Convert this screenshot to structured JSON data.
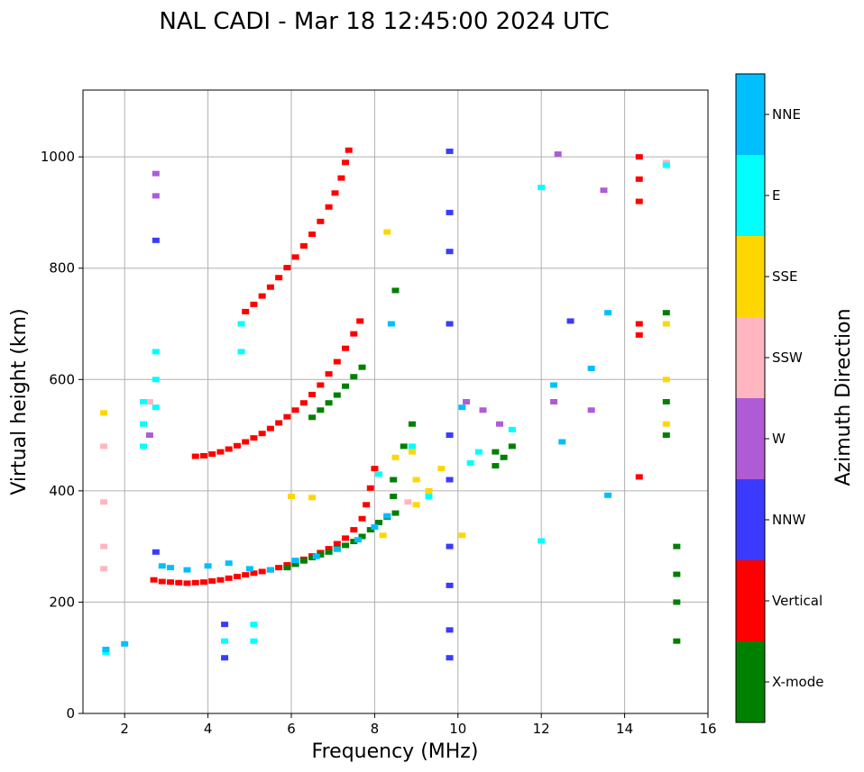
{
  "chart_data": {
    "type": "scatter",
    "title": "NAL CADI - Mar 18 12:45:00 2024 UTC",
    "xlabel": "Frequency (MHz)",
    "ylabel": "Virtual height (km)",
    "xlim": [
      1,
      16
    ],
    "ylim": [
      0,
      1120
    ],
    "xticks": [
      2,
      4,
      6,
      8,
      10,
      12,
      14,
      16
    ],
    "yticks": [
      0,
      200,
      400,
      600,
      800,
      1000
    ],
    "grid": true,
    "colorbar": {
      "title": "Azimuth Direction",
      "categories": [
        {
          "label": "X-mode",
          "color": "#008000"
        },
        {
          "label": "Vertical",
          "color": "#ff0000"
        },
        {
          "label": "NNW",
          "color": "#3b3bff"
        },
        {
          "label": "W",
          "color": "#b05bd6"
        },
        {
          "label": "SSW",
          "color": "#ffb6c1"
        },
        {
          "label": "SSE",
          "color": "#ffd700"
        },
        {
          "label": "E",
          "color": "#00ffff"
        },
        {
          "label": "NNE",
          "color": "#00bfff"
        }
      ]
    },
    "series": [
      {
        "name": "Vertical",
        "points": [
          [
            2.7,
            240
          ],
          [
            2.9,
            237
          ],
          [
            3.1,
            236
          ],
          [
            3.3,
            235
          ],
          [
            3.5,
            234
          ],
          [
            3.7,
            235
          ],
          [
            3.9,
            236
          ],
          [
            4.1,
            238
          ],
          [
            4.3,
            240
          ],
          [
            4.5,
            243
          ],
          [
            4.7,
            246
          ],
          [
            4.9,
            249
          ],
          [
            5.1,
            252
          ],
          [
            5.3,
            255
          ],
          [
            5.5,
            258
          ],
          [
            5.7,
            262
          ],
          [
            5.9,
            267
          ],
          [
            6.1,
            272
          ],
          [
            6.3,
            277
          ],
          [
            6.5,
            283
          ],
          [
            6.7,
            289
          ],
          [
            6.9,
            296
          ],
          [
            7.1,
            305
          ],
          [
            7.3,
            315
          ],
          [
            7.5,
            330
          ],
          [
            7.7,
            350
          ],
          [
            7.8,
            375
          ],
          [
            7.9,
            405
          ],
          [
            8.0,
            440
          ],
          [
            3.7,
            462
          ],
          [
            3.9,
            463
          ],
          [
            4.1,
            466
          ],
          [
            4.3,
            470
          ],
          [
            4.5,
            475
          ],
          [
            4.7,
            481
          ],
          [
            4.9,
            488
          ],
          [
            5.1,
            495
          ],
          [
            5.3,
            503
          ],
          [
            5.5,
            512
          ],
          [
            5.7,
            522
          ],
          [
            5.9,
            533
          ],
          [
            6.1,
            545
          ],
          [
            6.3,
            558
          ],
          [
            6.5,
            573
          ],
          [
            6.7,
            590
          ],
          [
            6.9,
            610
          ],
          [
            7.1,
            632
          ],
          [
            7.3,
            656
          ],
          [
            7.5,
            682
          ],
          [
            7.65,
            705
          ],
          [
            4.9,
            722
          ],
          [
            5.1,
            735
          ],
          [
            5.3,
            750
          ],
          [
            5.5,
            766
          ],
          [
            5.7,
            783
          ],
          [
            5.9,
            801
          ],
          [
            6.1,
            820
          ],
          [
            6.3,
            840
          ],
          [
            6.5,
            861
          ],
          [
            6.7,
            884
          ],
          [
            6.9,
            910
          ],
          [
            7.05,
            935
          ],
          [
            7.2,
            962
          ],
          [
            7.3,
            990
          ],
          [
            7.38,
            1012
          ],
          [
            14.35,
            1000
          ],
          [
            14.35,
            960
          ],
          [
            14.35,
            920
          ],
          [
            14.35,
            700
          ],
          [
            14.35,
            680
          ],
          [
            14.35,
            425
          ]
        ]
      },
      {
        "name": "X-mode",
        "points": [
          [
            5.9,
            262
          ],
          [
            6.1,
            268
          ],
          [
            6.3,
            274
          ],
          [
            6.5,
            280
          ],
          [
            6.7,
            285
          ],
          [
            6.9,
            290
          ],
          [
            7.1,
            296
          ],
          [
            7.3,
            302
          ],
          [
            7.5,
            309
          ],
          [
            7.7,
            318
          ],
          [
            7.9,
            330
          ],
          [
            8.1,
            343
          ],
          [
            8.3,
            353
          ],
          [
            8.5,
            360
          ],
          [
            6.5,
            532
          ],
          [
            6.7,
            545
          ],
          [
            6.9,
            558
          ],
          [
            7.1,
            572
          ],
          [
            7.3,
            588
          ],
          [
            7.5,
            605
          ],
          [
            7.7,
            622
          ],
          [
            8.5,
            760
          ],
          [
            8.45,
            420
          ],
          [
            8.45,
            390
          ],
          [
            8.7,
            480
          ],
          [
            8.9,
            520
          ],
          [
            10.9,
            470
          ],
          [
            10.9,
            445
          ],
          [
            11.1,
            460
          ],
          [
            11.3,
            480
          ],
          [
            15.25,
            300
          ],
          [
            15.25,
            250
          ],
          [
            15.25,
            200
          ],
          [
            15.25,
            130
          ],
          [
            15.0,
            720
          ],
          [
            15.0,
            560
          ],
          [
            15.0,
            500
          ]
        ]
      },
      {
        "name": "NNW",
        "points": [
          [
            9.8,
            1010
          ],
          [
            9.8,
            900
          ],
          [
            9.8,
            830
          ],
          [
            9.8,
            700
          ],
          [
            9.8,
            500
          ],
          [
            9.8,
            420
          ],
          [
            9.8,
            300
          ],
          [
            9.8,
            230
          ],
          [
            9.8,
            150
          ],
          [
            9.8,
            100
          ],
          [
            2.75,
            290
          ],
          [
            2.75,
            850
          ],
          [
            4.4,
            160
          ],
          [
            4.4,
            100
          ],
          [
            12.7,
            705
          ]
        ]
      },
      {
        "name": "W",
        "points": [
          [
            2.75,
            970
          ],
          [
            2.75,
            930
          ],
          [
            2.6,
            500
          ],
          [
            10.2,
            560
          ],
          [
            10.6,
            545
          ],
          [
            11.0,
            520
          ],
          [
            12.3,
            560
          ],
          [
            12.4,
            1005
          ],
          [
            13.5,
            940
          ],
          [
            13.2,
            545
          ]
        ]
      },
      {
        "name": "SSW",
        "points": [
          [
            1.5,
            380
          ],
          [
            1.5,
            300
          ],
          [
            1.5,
            260
          ],
          [
            1.5,
            480
          ],
          [
            2.6,
            560
          ],
          [
            8.8,
            380
          ],
          [
            15.0,
            990
          ]
        ]
      },
      {
        "name": "SSE",
        "points": [
          [
            1.5,
            540
          ],
          [
            6.0,
            390
          ],
          [
            6.5,
            388
          ],
          [
            8.5,
            460
          ],
          [
            8.9,
            470
          ],
          [
            9.0,
            420
          ],
          [
            9.0,
            375
          ],
          [
            9.3,
            400
          ],
          [
            9.6,
            440
          ],
          [
            15.0,
            700
          ],
          [
            15.0,
            600
          ],
          [
            15.0,
            520
          ],
          [
            8.3,
            865
          ],
          [
            8.2,
            320
          ],
          [
            10.1,
            320
          ]
        ]
      },
      {
        "name": "E",
        "points": [
          [
            2.45,
            560
          ],
          [
            2.45,
            520
          ],
          [
            2.45,
            480
          ],
          [
            2.75,
            650
          ],
          [
            2.75,
            600
          ],
          [
            2.75,
            550
          ],
          [
            4.8,
            700
          ],
          [
            4.8,
            650
          ],
          [
            5.1,
            160
          ],
          [
            5.1,
            130
          ],
          [
            4.4,
            130
          ],
          [
            8.1,
            430
          ],
          [
            8.9,
            480
          ],
          [
            9.3,
            390
          ],
          [
            10.3,
            450
          ],
          [
            10.5,
            470
          ],
          [
            11.3,
            510
          ],
          [
            12.0,
            945
          ],
          [
            12.0,
            310
          ],
          [
            15.0,
            985
          ],
          [
            1.55,
            110
          ]
        ]
      },
      {
        "name": "NNE",
        "points": [
          [
            2.9,
            265
          ],
          [
            3.1,
            262
          ],
          [
            3.5,
            258
          ],
          [
            4.0,
            265
          ],
          [
            4.5,
            270
          ],
          [
            5.0,
            260
          ],
          [
            5.5,
            258
          ],
          [
            6.1,
            275
          ],
          [
            6.6,
            282
          ],
          [
            7.1,
            295
          ],
          [
            7.6,
            312
          ],
          [
            8.0,
            335
          ],
          [
            8.3,
            355
          ],
          [
            8.4,
            700
          ],
          [
            10.1,
            550
          ],
          [
            12.3,
            590
          ],
          [
            12.5,
            488
          ],
          [
            13.2,
            620
          ],
          [
            13.6,
            720
          ],
          [
            13.6,
            392
          ],
          [
            1.55,
            115
          ],
          [
            2.0,
            125
          ]
        ]
      }
    ]
  }
}
